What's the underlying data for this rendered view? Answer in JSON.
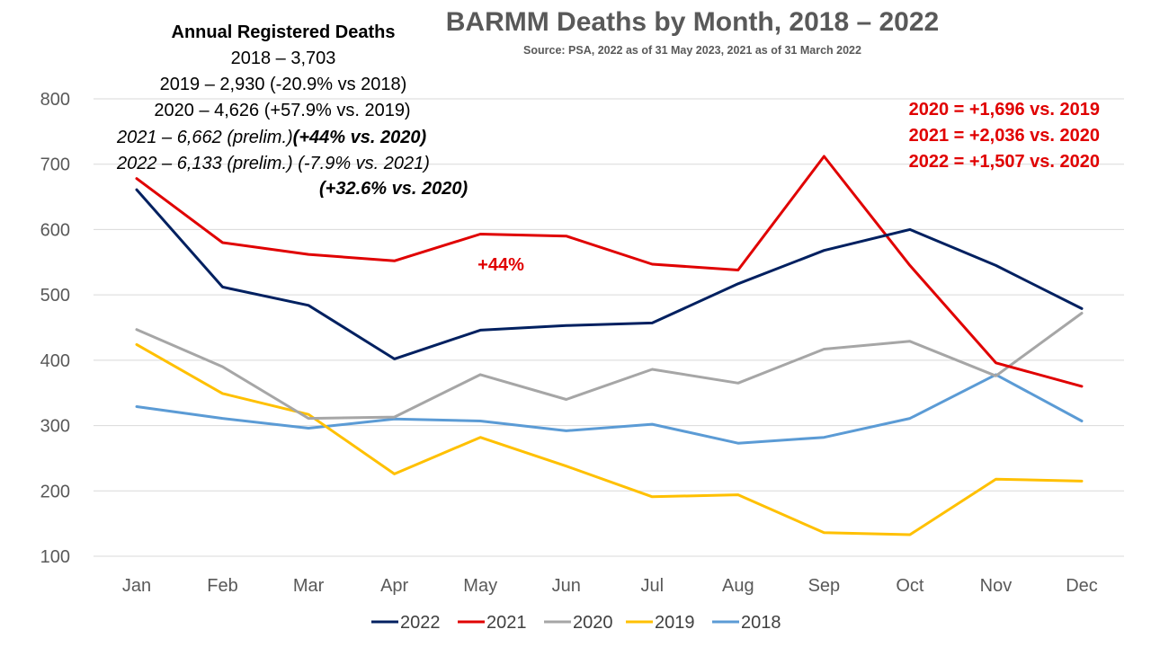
{
  "chart_data": {
    "type": "line",
    "title": "BARMM Deaths by Month, 2018 – 2022",
    "subtitle": "Source: PSA, 2022 as of 31 May 2023, 2021 as of 31 March 2022",
    "categories": [
      "Jan",
      "Feb",
      "Mar",
      "Apr",
      "May",
      "Jun",
      "Jul",
      "Aug",
      "Sep",
      "Oct",
      "Nov",
      "Dec"
    ],
    "ylim": [
      100,
      800
    ],
    "yticks": [
      "100",
      "200",
      "300",
      "400",
      "500",
      "600",
      "700",
      "800"
    ],
    "grid": true,
    "legend_position": "bottom",
    "series": [
      {
        "name": "2022",
        "color": "#002060",
        "values": [
          661,
          512,
          484,
          402,
          446,
          453,
          457,
          517,
          568,
          600,
          545,
          479
        ]
      },
      {
        "name": "2021",
        "color": "#e00000",
        "values": [
          678,
          580,
          562,
          552,
          593,
          590,
          547,
          538,
          712,
          545,
          396,
          360
        ]
      },
      {
        "name": "2020",
        "color": "#a6a6a6",
        "values": [
          447,
          390,
          311,
          313,
          378,
          340,
          386,
          365,
          417,
          429,
          376,
          472
        ]
      },
      {
        "name": "2019",
        "color": "#ffc000",
        "values": [
          424,
          349,
          317,
          226,
          282,
          238,
          191,
          194,
          136,
          133,
          218,
          215
        ]
      },
      {
        "name": "2018",
        "color": "#5b9bd5",
        "values": [
          329,
          311,
          296,
          310,
          307,
          292,
          302,
          273,
          282,
          311,
          378,
          307
        ]
      }
    ],
    "annotations": {
      "annual_heading": "Annual Registered Deaths",
      "annual_2018": "2018 – 3,703",
      "annual_2019": "2019 – 2,930 (-20.9% vs 2018)",
      "annual_2020": "2020 – 4,626 (+57.9% vs. 2019)",
      "annual_2021_a": "2021 – 6,662 (prelim.)",
      "annual_2021_b": "(+44% vs. 2020)",
      "annual_2022": "2022 – 6,133 (prelim.) (-7.9% vs. 2021)",
      "annual_2022_b": "(+32.6% vs. 2020)",
      "diff_2020": "2020 = +1,696 vs. 2019",
      "diff_2021": "2021 = +2,036 vs. 2020",
      "diff_2022": "2022 = +1,507 vs. 2020",
      "inline_label": "+44%"
    }
  }
}
